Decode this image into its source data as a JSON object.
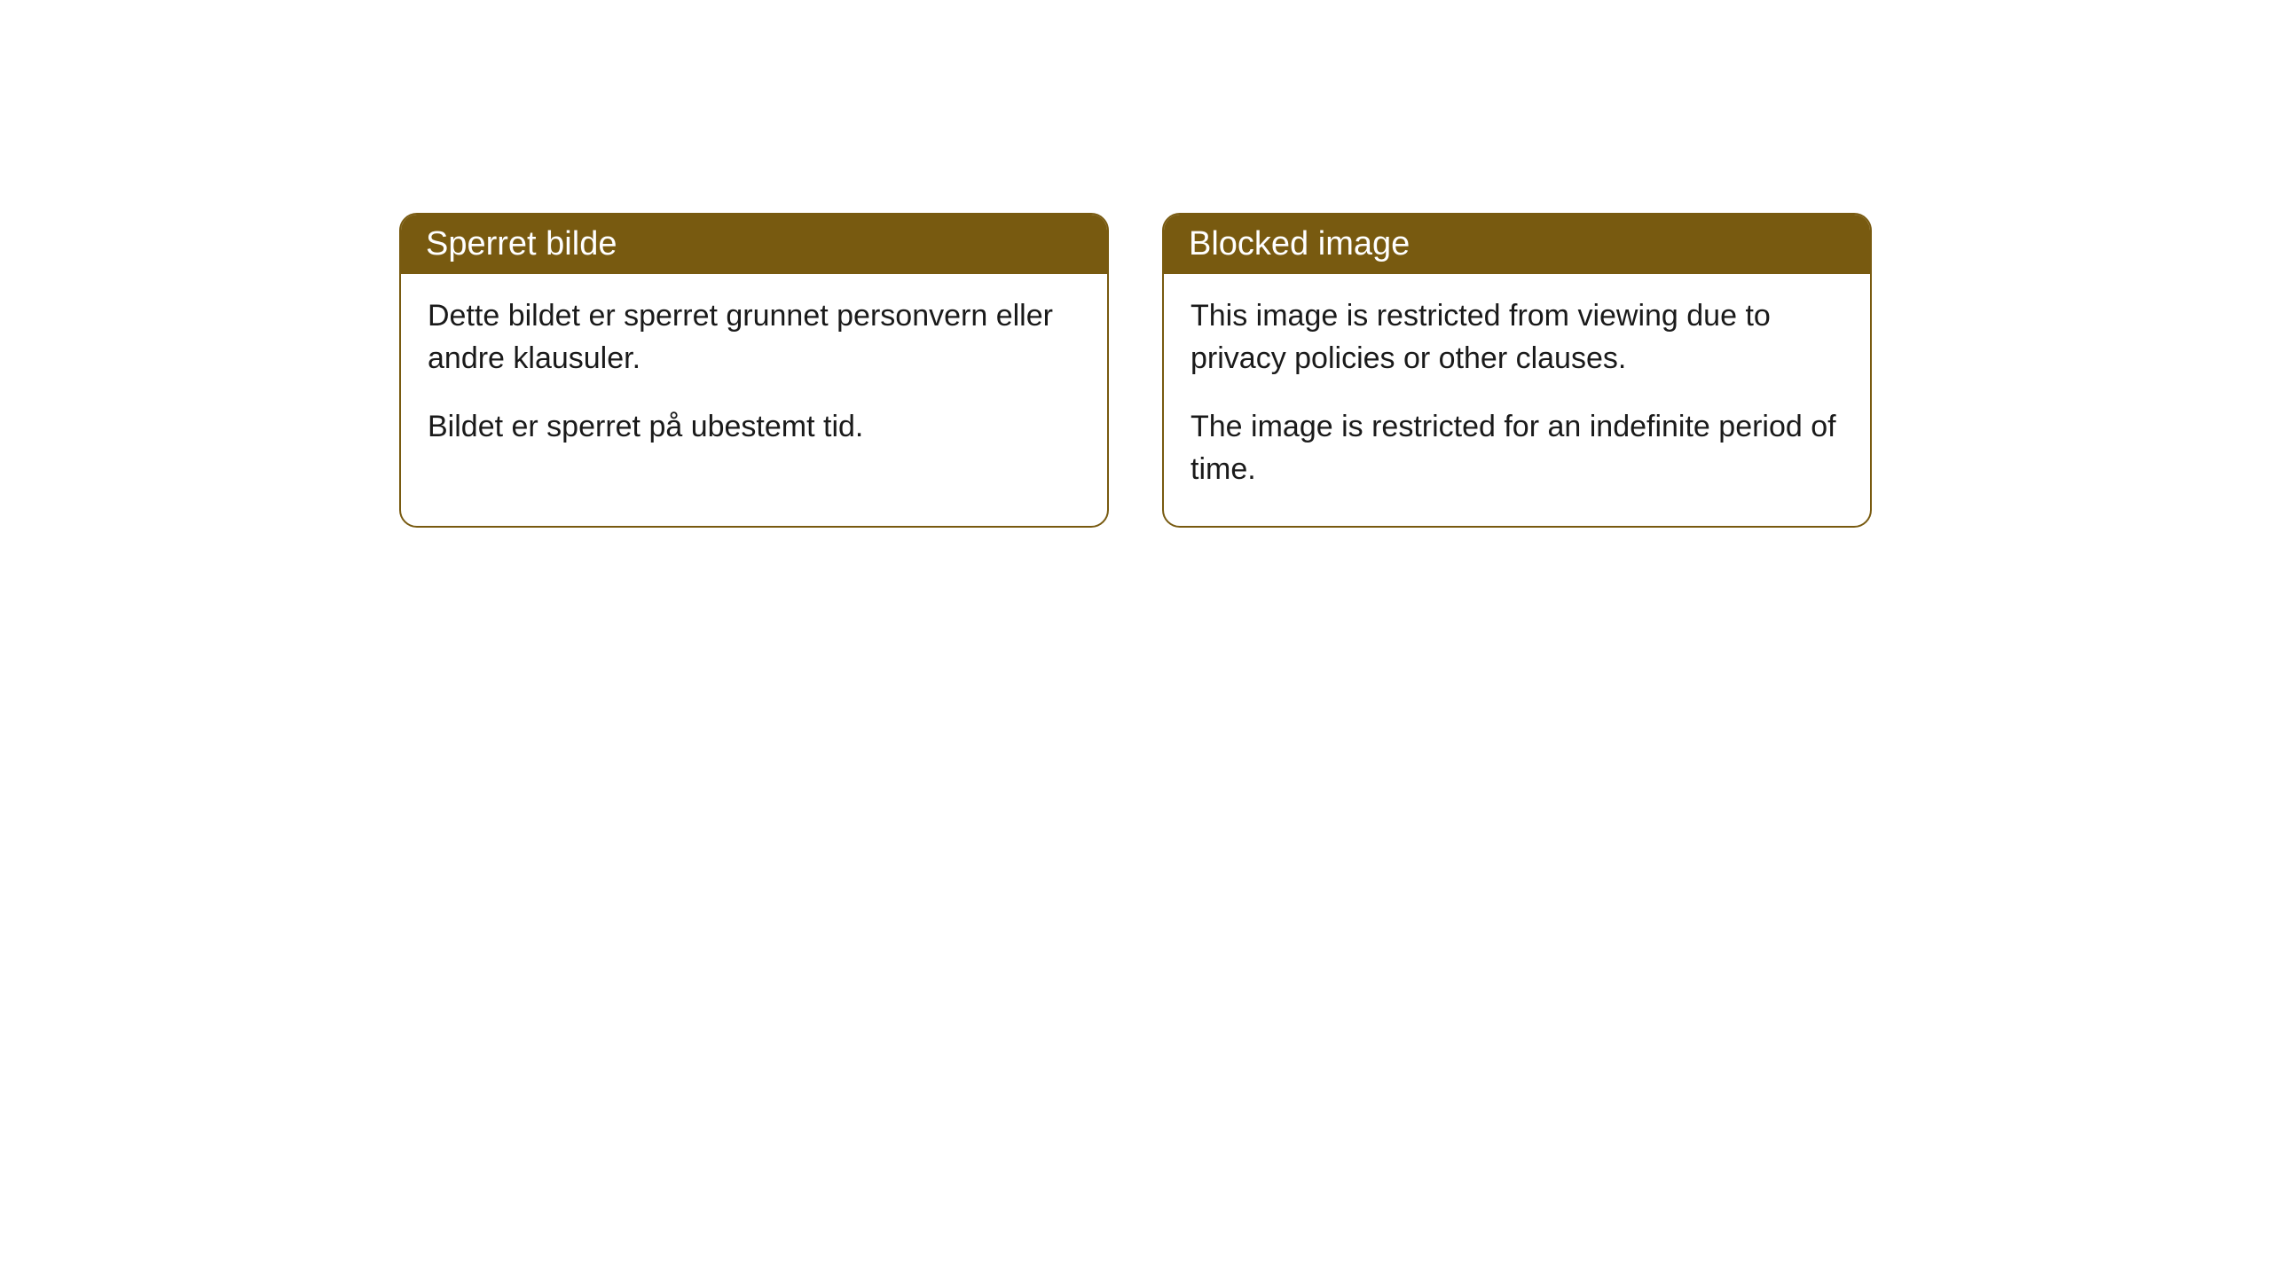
{
  "cards": [
    {
      "header": "Sperret bilde",
      "paragraph1": "Dette bildet er sperret grunnet personvern eller andre klausuler.",
      "paragraph2": "Bildet er sperret på ubestemt tid."
    },
    {
      "header": "Blocked image",
      "paragraph1": "This image is restricted from viewing due to privacy policies or other clauses.",
      "paragraph2": "The image is restricted for an indefinite period of time."
    }
  ],
  "styling": {
    "header_background": "#785a10",
    "header_text_color": "#ffffff",
    "border_color": "#785a10",
    "body_text_color": "#1a1a1a",
    "background_color": "#ffffff",
    "border_radius": 20,
    "header_font_size": 38,
    "body_font_size": 34
  }
}
